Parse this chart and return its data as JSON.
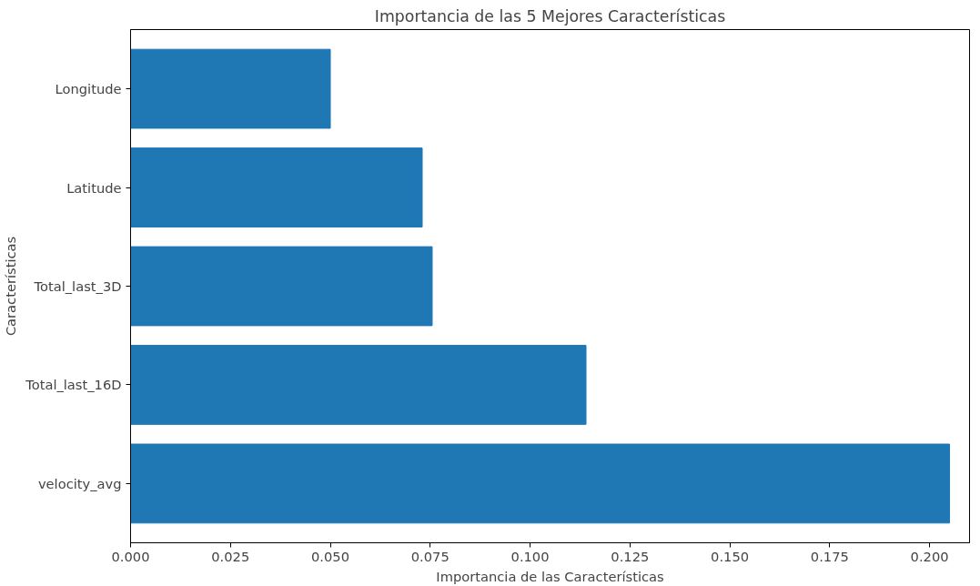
{
  "chart_data": {
    "type": "bar",
    "orientation": "horizontal",
    "title": "Importancia de las 5 Mejores Características",
    "xlabel": "Importancia de las Características",
    "ylabel": "Características",
    "categories": [
      "Longitude",
      "Latitude",
      "Total_last_3D",
      "Total_last_16D",
      "velocity_avg"
    ],
    "values": [
      0.05,
      0.073,
      0.0755,
      0.114,
      0.205
    ],
    "color": "#1f77b4",
    "xlim": [
      0,
      0.21
    ],
    "xticks": [
      {
        "value": 0,
        "label": "0.000"
      },
      {
        "value": 0.025,
        "label": "0.025"
      },
      {
        "value": 0.05,
        "label": "0.050"
      },
      {
        "value": 0.075,
        "label": "0.075"
      },
      {
        "value": 0.1,
        "label": "0.100"
      },
      {
        "value": 0.125,
        "label": "0.125"
      },
      {
        "value": 0.15,
        "label": "0.150"
      },
      {
        "value": 0.175,
        "label": "0.175"
      },
      {
        "value": 0.2,
        "label": "0.200"
      }
    ],
    "grid": false
  }
}
